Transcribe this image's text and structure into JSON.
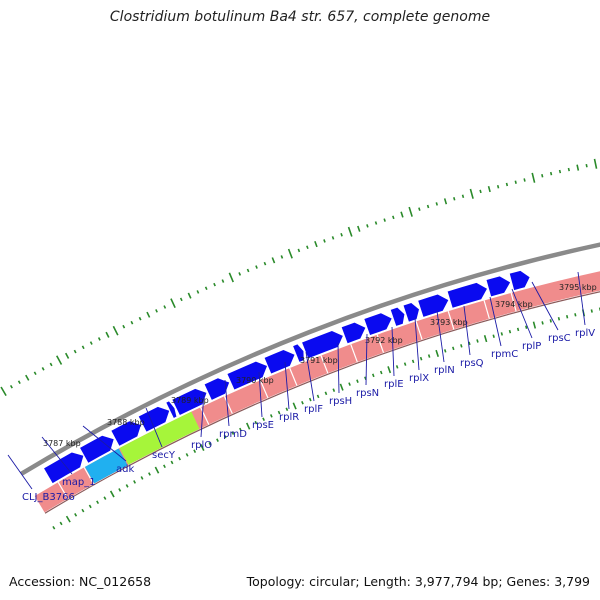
{
  "title": "Clostridium botulinum Ba4 str. 657, complete genome",
  "footer": {
    "accession": "Accession: NC_012658",
    "topology": "Topology: circular; Length: 3,977,794 bp; Genes: 3,799"
  },
  "colors": {
    "backbone": "#8a8a8a",
    "gene_forward": "#0a0af0",
    "gene_reverse": "#f08c8c",
    "gene_highlight_green": "#a6f53a",
    "gene_highlight_cyan": "#20b0f0",
    "gc_ticks": "#2a8a2a",
    "label_text": "#1a1aa6"
  },
  "scale_ticks": [
    {
      "label": "3787 kbp"
    },
    {
      "label": "3788 kbp"
    },
    {
      "label": "3789 kbp"
    },
    {
      "label": "3790 kbp"
    },
    {
      "label": "3791 kbp"
    },
    {
      "label": "3792 kbp"
    },
    {
      "label": "3793 kbp"
    },
    {
      "label": "3794 kbp"
    },
    {
      "label": "3795 kbp"
    }
  ],
  "gene_labels": [
    "CLJ_B3766",
    "map_1",
    "adk",
    "secY",
    "rplO",
    "rpmD",
    "rpsE",
    "rplR",
    "rplF",
    "rpsH",
    "rpsN",
    "rplE",
    "rplX",
    "rplN",
    "rpsQ",
    "rpmC",
    "rplP",
    "rpsC",
    "rplV"
  ]
}
